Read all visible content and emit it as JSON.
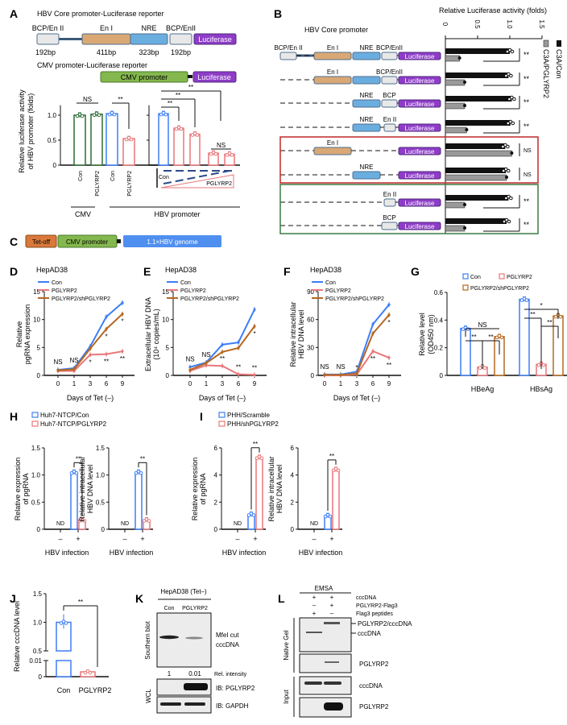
{
  "panel_labels": {
    "A": "A",
    "B": "B",
    "C": "C",
    "D": "D",
    "E": "E",
    "F": "F",
    "G": "G",
    "H": "H",
    "I": "I",
    "J": "J",
    "K": "K",
    "L": "L"
  },
  "colors": {
    "con": "#3d7ef5",
    "pglyrp2": "#e8777a",
    "sh": "#b5681f",
    "cmv": "#2e6b35",
    "black": "#111111",
    "gray": "#9a9a9a",
    "enI": "#d9a874",
    "nre": "#6aaee0",
    "luc": "#8e3cc8",
    "cmv_box": "#84b84e",
    "tetoff": "#d9793a",
    "hbv_box": "#4f8ff0",
    "red_box": "#c0282a",
    "green_box": "#3c7a45"
  },
  "panelA": {
    "title1": "HBV Core promoter-Luciferase reporter",
    "segments": [
      "BCP/En II",
      "En I",
      "NRE",
      "BCP/EnII"
    ],
    "sizes": [
      "192bp",
      "411bp",
      "323bp",
      "192bp"
    ],
    "luciferase": "Luciferase",
    "title2": "CMV promoter-Luciferase reporter",
    "cmv_promoter": "CMV promoter",
    "dose_con": "Con",
    "dose_pgl": "PGLYRP2"
  },
  "panelB": {
    "title": "HBV Core promoter",
    "luciferase": "Luciferase",
    "rows": [
      {
        "parts": [
          {
            "kind": "bcpA",
            "label": "BCP/En II"
          },
          {
            "kind": "enI",
            "label": "En I"
          },
          {
            "kind": "nre",
            "label": "NRE"
          },
          {
            "kind": "bcp",
            "label": "BCP/EnII"
          }
        ]
      },
      {
        "parts": [
          {
            "kind": "enI",
            "label": "En I"
          },
          {
            "kind": "nre",
            "label": ""
          },
          {
            "kind": "bcp",
            "label": "BCP/EnII"
          }
        ]
      },
      {
        "parts": [
          {
            "kind": "nre",
            "label": "NRE"
          },
          {
            "kind": "bcp",
            "label": "BCP"
          }
        ]
      },
      {
        "parts": [
          {
            "kind": "nre",
            "label": "NRE"
          },
          {
            "kind": "enII",
            "label": "En II"
          }
        ]
      },
      {
        "parts": [
          {
            "kind": "enI",
            "label": "En I"
          }
        ]
      },
      {
        "parts": [
          {
            "kind": "nre",
            "label": "NRE"
          }
        ]
      },
      {
        "parts": [
          {
            "kind": "enII",
            "label": "En II"
          }
        ]
      },
      {
        "parts": [
          {
            "kind": "bcp",
            "label": "BCP"
          }
        ]
      }
    ]
  },
  "panelC": {
    "tetoff": "Tet-off",
    "cmv": "CMV promoter",
    "genome": "1.1×HBV genome"
  },
  "panelK": {
    "title": "HepAD38 (Tet–)",
    "lanes": [
      "Con",
      "PGLYRP2"
    ],
    "southern": "Southern blot",
    "band_label1": "MfeI cut",
    "band_label2": "cccDNA",
    "rel_values": [
      "1",
      "0.01"
    ],
    "rel_label": "Rel. intensity",
    "wcl": "WCL",
    "ib1": "IB: PGLYRP2",
    "ib2": "IB: GAPDH"
  },
  "panelL": {
    "title": "EMSA",
    "conditions": [
      {
        "label": "cccDNA",
        "lanes": [
          "+",
          "+"
        ]
      },
      {
        "label": "PGLYRP2-Flag3",
        "lanes": [
          "–",
          "+"
        ]
      },
      {
        "label": "Flag3 peptides",
        "lanes": [
          "+",
          "–"
        ]
      }
    ],
    "native_gel": "Native Gel",
    "input": "Input",
    "complex_label": "PGLYRP2/cccDNA",
    "cccdna_label": "cccDNA",
    "pglyrp2_label": "PGLYRP2",
    "input_cccdna": "cccDNA",
    "input_pglyrp2": "PGLYRP2"
  },
  "chart_data": [
    {
      "id": "A-cmv-hbv",
      "type": "bar",
      "categories": [
        "Con",
        "PGLYRP2",
        "Con",
        "PGLYRP2"
      ],
      "values": [
        1.0,
        1.02,
        1.03,
        0.53
      ],
      "groups": [
        "CMV",
        "HBV promoter"
      ],
      "ylabel": [
        "Relative luciferase activity",
        "of HBV promoter (folds)"
      ],
      "ylim": [
        0,
        1.2
      ],
      "yticks": [
        0,
        0.5,
        1.0
      ],
      "ytick_labels": [
        "0",
        "0.5",
        "1.0"
      ],
      "significance": [
        "NS",
        "**"
      ]
    },
    {
      "id": "A-dose",
      "type": "bar",
      "categories": [
        "Con",
        "PGLYRP2 dose 1",
        "PGLYRP2 dose 2",
        "PGLYRP2 dose 3",
        "PGLYRP2 dose 4"
      ],
      "values": [
        1.03,
        0.74,
        0.62,
        0.24,
        0.22
      ],
      "ylim": [
        0,
        1.2
      ],
      "yticks": [
        0,
        0.5,
        1.0
      ],
      "significance": [
        "**",
        "**",
        "**",
        "NS"
      ]
    },
    {
      "id": "B",
      "type": "bar",
      "orientation": "horizontal",
      "xlabel": "Relative Luciferase activity (folds)",
      "xlim": [
        0,
        1.5
      ],
      "xticks": [
        0,
        0.5,
        1.0,
        1.5
      ],
      "xtick_labels": [
        "0",
        "0.5",
        "1.0",
        "1.5"
      ],
      "series": [
        {
          "name": "C3A/Con",
          "values": [
            1.0,
            0.98,
            1.03,
            1.01,
            0.93,
            0.94,
            0.98,
            0.95
          ]
        },
        {
          "name": "C3A/PGLYRP2",
          "values": [
            0.22,
            0.3,
            0.3,
            0.33,
            1.03,
            0.95,
            0.3,
            0.3
          ]
        }
      ],
      "significance": [
        "**",
        "**",
        "**",
        "**",
        "NS",
        "NS",
        "**",
        "**"
      ]
    },
    {
      "id": "D",
      "type": "line",
      "title": "HepAD38",
      "categories": [
        "0",
        "1",
        "3",
        "6",
        "9"
      ],
      "xlabel": "Days of Tet (–)",
      "ylabel": [
        "Relative",
        "pgRNA expression"
      ],
      "ylim": [
        0,
        15
      ],
      "yticks": [
        0,
        5,
        10,
        15
      ],
      "ytick_labels": [
        "0",
        "5",
        "10",
        "15"
      ],
      "series": [
        {
          "name": "Con",
          "values": [
            1.0,
            1.3,
            5.2,
            10.5,
            13.0
          ]
        },
        {
          "name": "PGLYRP2",
          "values": [
            0.8,
            0.8,
            3.7,
            3.8,
            4.3
          ]
        },
        {
          "name": "PGLYRP2/shPGLYRP2",
          "values": [
            0.9,
            1.1,
            4.8,
            8.3,
            11.0
          ]
        }
      ],
      "significance": [
        [
          "",
          "",
          "",
          "",
          ""
        ],
        [
          "NS",
          "NS",
          "*",
          "**",
          "**"
        ],
        [
          "",
          "",
          "",
          "*",
          "*"
        ]
      ]
    },
    {
      "id": "E",
      "type": "line",
      "title": "HepAD38",
      "categories": [
        "0",
        "1",
        "3",
        "6",
        "9"
      ],
      "xlabel": "Days of Tet (–)",
      "ylabel": [
        "Extracellular HBV DNA",
        "(10⁴ copies/mL)"
      ],
      "ylim": [
        0,
        15
      ],
      "yticks": [
        0,
        5,
        10,
        15
      ],
      "ytick_labels": [
        "0",
        "5",
        "10",
        "15"
      ],
      "series": [
        {
          "name": "Con",
          "values": [
            1.5,
            2.3,
            5.5,
            5.9,
            11.8
          ]
        },
        {
          "name": "PGLYRP2",
          "values": [
            0.8,
            1.8,
            1.7,
            0.2,
            0.1
          ]
        },
        {
          "name": "PGLYRP2/shPGLYRP2",
          "values": [
            1.0,
            2.2,
            4.2,
            4.9,
            8.8
          ]
        }
      ],
      "significance": [
        [
          "",
          "",
          "",
          "",
          ""
        ],
        [
          "NS",
          "NS",
          "**",
          "**",
          "**"
        ],
        [
          "",
          "",
          "",
          "",
          "*"
        ]
      ]
    },
    {
      "id": "F",
      "type": "line",
      "title": "HepAD38",
      "categories": [
        "0",
        "1",
        "3",
        "6",
        "9"
      ],
      "xlabel": "Days of Tet (–)",
      "ylabel": [
        "Relative intracellular",
        "HBV DNA level"
      ],
      "ylim": [
        0,
        90
      ],
      "yticks": [
        0,
        30,
        60,
        90
      ],
      "ytick_labels": [
        "0",
        "30",
        "60",
        "90"
      ],
      "series": [
        {
          "name": "Con",
          "values": [
            1,
            1,
            4,
            55,
            76
          ]
        },
        {
          "name": "PGLYRP2",
          "values": [
            0,
            0,
            1,
            26,
            19
          ]
        },
        {
          "name": "PGLYRP2/shPGLYRP2",
          "values": [
            0.5,
            0.5,
            2,
            45,
            65
          ]
        }
      ],
      "significance": [
        [
          "",
          "",
          "",
          "",
          ""
        ],
        [
          "NS",
          "NS",
          "*",
          "**",
          "**"
        ],
        [
          "",
          "",
          "",
          "",
          "*"
        ]
      ]
    },
    {
      "id": "G",
      "type": "bar",
      "categories": [
        "HBeAg",
        "HBsAg"
      ],
      "ylabel": [
        "Relative level",
        "(OD450 nm)"
      ],
      "ylim": [
        0,
        0.6
      ],
      "yticks": [
        0,
        0.2,
        0.4,
        0.6
      ],
      "ytick_labels": [
        "0",
        "0.2",
        "0.4",
        "0.6"
      ],
      "series": [
        {
          "name": "Con",
          "values": [
            0.34,
            0.55
          ]
        },
        {
          "name": "PGLYRP2",
          "values": [
            0.06,
            0.08
          ]
        },
        {
          "name": "PGLYRP2/shPGLYRP2",
          "values": [
            0.28,
            0.43
          ]
        }
      ],
      "significance": [
        [
          "NS",
          "**",
          "**"
        ],
        [
          "*",
          "**",
          "**"
        ]
      ]
    },
    {
      "id": "H-pgRNA",
      "type": "bar",
      "categories": [
        "–",
        "+"
      ],
      "xlabel": "HBV infection",
      "ylabel": [
        "Relative expression",
        "of pgRNA"
      ],
      "ylim": [
        0,
        1.5
      ],
      "yticks": [
        0,
        0.5,
        1.0,
        1.5
      ],
      "ytick_labels": [
        "0",
        "0.5",
        "1.0",
        "1.5"
      ],
      "nd_label": "ND",
      "series": [
        {
          "name": "Huh7-NTCP/Con",
          "values": [
            null,
            1.05
          ]
        },
        {
          "name": "Huh7-NTCP/PGLYRP2",
          "values": [
            null,
            0.17
          ]
        }
      ],
      "significance": "**"
    },
    {
      "id": "H-DNA",
      "type": "bar",
      "categories": [
        "–",
        "+"
      ],
      "xlabel": "HBV infection",
      "ylabel": [
        "Relative intracellular",
        "HBV DNA level"
      ],
      "ylim": [
        0,
        1.5
      ],
      "yticks": [
        0,
        0.5,
        1.0,
        1.5
      ],
      "ytick_labels": [
        "0",
        "0.5",
        "1.0",
        "1.5"
      ],
      "nd_label": "ND",
      "series": [
        {
          "name": "Huh7-NTCP/Con",
          "values": [
            null,
            1.05
          ]
        },
        {
          "name": "Huh7-NTCP/PGLYRP2",
          "values": [
            null,
            0.17
          ]
        }
      ],
      "significance": "**"
    },
    {
      "id": "I-pgRNA",
      "type": "bar",
      "categories": [
        "–",
        "+"
      ],
      "xlabel": "HBV infection",
      "ylabel": [
        "Relative expression",
        "of pgRNA"
      ],
      "ylim": [
        0,
        6
      ],
      "yticks": [
        0,
        2,
        4,
        6
      ],
      "ytick_labels": [
        "0",
        "2",
        "4",
        "6"
      ],
      "nd_label": "ND",
      "series": [
        {
          "name": "PHH/Scramble",
          "values": [
            null,
            1.1
          ]
        },
        {
          "name": "PHH/shPGLYRP2",
          "values": [
            null,
            5.3
          ]
        }
      ],
      "significance": "**"
    },
    {
      "id": "I-DNA",
      "type": "bar",
      "categories": [
        "–",
        "+"
      ],
      "xlabel": "HBV infection",
      "ylabel": [
        "Relative intracellular",
        "HBV DNA level"
      ],
      "ylim": [
        0,
        6
      ],
      "yticks": [
        0,
        2,
        4,
        6
      ],
      "ytick_labels": [
        "0",
        "2",
        "4",
        "6"
      ],
      "nd_label": "ND",
      "series": [
        {
          "name": "PHH/Scramble",
          "values": [
            null,
            1.0
          ]
        },
        {
          "name": "PHH/shPGLYRP2",
          "values": [
            null,
            4.4
          ]
        }
      ],
      "significance": "**"
    },
    {
      "id": "J",
      "type": "bar",
      "categories": [
        "Con",
        "PGLYRP2"
      ],
      "values": [
        1.0,
        0.003
      ],
      "ylabel": [
        "Relative cccDNA level"
      ],
      "ylim": [
        0,
        1.5
      ],
      "yticks": [
        0,
        0.01,
        0.5,
        1.0,
        1.5
      ],
      "ytick_labels": [
        "0",
        "0.01",
        "0.5",
        "1.0",
        "1.5"
      ],
      "significance": "**"
    }
  ]
}
